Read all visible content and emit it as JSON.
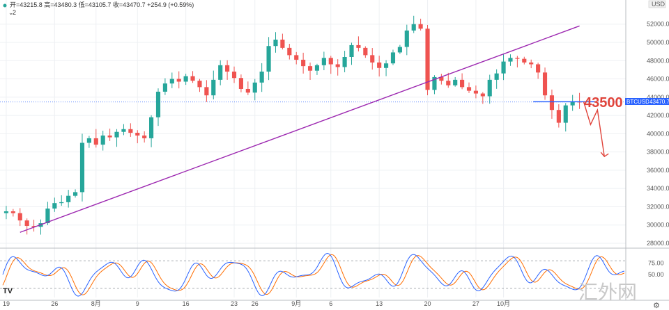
{
  "chart_data": {
    "type": "candlestick",
    "symbol": "BTCUSD",
    "currency": "USD",
    "ohlc_legend": {
      "text": "开=43215.8  高=43480.3  低=43105.7  收=43470.7  +254.9 (+0.59%)"
    },
    "indicator_count": "2",
    "last_price": 43470.7,
    "last_price_label": "43470.7",
    "annotation": {
      "text": "43500",
      "level": 43500
    },
    "yaxis": {
      "ticks": [
        28000,
        30000,
        32000,
        34000,
        36000,
        38000,
        40000,
        42000,
        44000,
        46000,
        48000,
        50000,
        52000
      ],
      "tick_labels": [
        "28000.0",
        "30000.0",
        "32000.0",
        "34000.0",
        "36000.0",
        "38000.0",
        "40000.0",
        "42000.0",
        "44000.0",
        "46000.0",
        "48000.0",
        "50000.0",
        "52000.0"
      ],
      "range": [
        28000,
        53500
      ]
    },
    "xaxis": {
      "ticks": [
        {
          "index": 0,
          "label": "19"
        },
        {
          "index": 7,
          "label": "26"
        },
        {
          "index": 13,
          "label": "8月"
        },
        {
          "index": 19,
          "label": "9"
        },
        {
          "index": 26,
          "label": "16"
        },
        {
          "index": 33,
          "label": "23"
        },
        {
          "index": 36,
          "label": "26"
        },
        {
          "index": 42,
          "label": "9月"
        },
        {
          "index": 47,
          "label": "6"
        },
        {
          "index": 54,
          "label": "13"
        },
        {
          "index": 61,
          "label": "20"
        },
        {
          "index": 68,
          "label": "27"
        },
        {
          "index": 72,
          "label": "10月"
        }
      ]
    },
    "close": [
      31500,
      31300,
      30500,
      29900,
      29800,
      30200,
      31800,
      32400,
      32500,
      33200,
      33600,
      39000,
      39500,
      38800,
      39800,
      39600,
      40200,
      40500,
      40100,
      39800,
      39500,
      41800,
      44600,
      45500,
      46000,
      45700,
      46300,
      45800,
      45100,
      44200,
      45900,
      47500,
      46800,
      46100,
      44900,
      44500,
      45600,
      46800,
      49600,
      50300,
      49400,
      48600,
      48100,
      47400,
      46900,
      47500,
      48300,
      47600,
      47300,
      48400,
      49700,
      49400,
      48600,
      47800,
      47200,
      47700,
      48900,
      49500,
      51300,
      52000,
      51500,
      44800,
      46200,
      45800,
      45300,
      45900,
      45100,
      44700,
      44400,
      44100,
      45900,
      46600,
      47900,
      48300,
      48200,
      47800,
      47600,
      46700,
      44200,
      42600,
      41200,
      43100,
      43500,
      43470.7
    ],
    "trendline": {
      "from": {
        "index": 2,
        "price": 29200
      },
      "to": {
        "index": 83,
        "price": 51800
      }
    },
    "horizontal_level": {
      "from_index": 76,
      "to_index": 83,
      "price": 43500
    },
    "projection": [
      {
        "index": 83,
        "price": 43500
      },
      {
        "index": 84,
        "price": 41000
      },
      {
        "index": 85,
        "price": 42600
      },
      {
        "index": 86,
        "price": 37500
      }
    ],
    "stoch_rsi": {
      "tick_labels": [
        "75.00",
        "50.00"
      ],
      "levels": [
        80,
        20
      ],
      "k_line_color": "#2962ff",
      "d_line_color": "#ff6d00"
    },
    "colors": {
      "up": "#26a69a",
      "down": "#ef5350",
      "trendline": "#9c27b0",
      "level": "#2962ff",
      "projection": "#e0433a"
    }
  },
  "branding": {
    "tv_logo": "TV",
    "watermark": "汇外网"
  }
}
